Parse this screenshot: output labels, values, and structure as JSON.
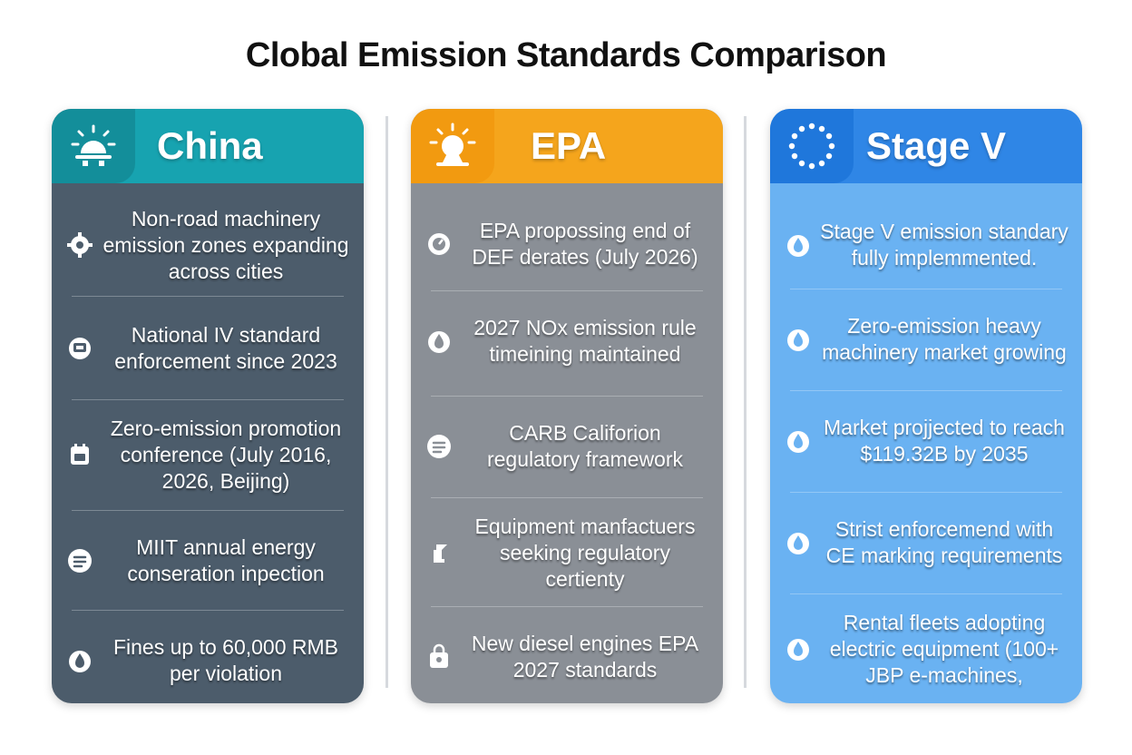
{
  "title": "Clobal Emission Standards Comparison",
  "colors": {
    "china_header": "#17a3b0",
    "china_body": "#4c5c6b",
    "epa_header": "#f5a51c",
    "epa_body": "#8a8f96",
    "stage_header": "#2f86e6",
    "stage_body": "#6ab2f2"
  },
  "columns": [
    {
      "name": "China",
      "header_icon": "sunrise-icon",
      "items": [
        {
          "icon": "cog-icon",
          "text": "Non-road machinery emission zones expanding across cities"
        },
        {
          "icon": "badge-icon",
          "text": "National IV standard enforcement since 2023"
        },
        {
          "icon": "calendar-icon",
          "text": "Zero-emission promotion conference (July 2016, 2026, Beijing)"
        },
        {
          "icon": "document-icon",
          "text": "MIIT annual energy conseration inpection"
        },
        {
          "icon": "drop-icon",
          "text": "Fines up to 60,000 RMB per violation"
        }
      ]
    },
    {
      "name": "EPA",
      "header_icon": "sun-icon",
      "items": [
        {
          "icon": "gauge-icon",
          "text": "EPA propossing end of DEF derates (July 2026)"
        },
        {
          "icon": "drop-icon",
          "text": "2027 NOx emission rule timeining maintained"
        },
        {
          "icon": "document-icon",
          "text": "CARB Califorion regulatory framework"
        },
        {
          "icon": "clipboard-icon",
          "text": "Equipment manfactuers seeking regulatory certienty"
        },
        {
          "icon": "bag-icon",
          "text": "New diesel engines EPA 2027 standards"
        }
      ]
    },
    {
      "name": "Stage V",
      "header_icon": "eu-stars-icon",
      "items": [
        {
          "icon": "drop-icon",
          "text": "Stage V emission standary fully implemmented."
        },
        {
          "icon": "drop-icon",
          "text": "Zero-emission heavy machinery market growing"
        },
        {
          "icon": "drop-icon",
          "text": "Market projjected to reach $119.32B by 2035"
        },
        {
          "icon": "drop-icon",
          "text": "Strist enforcemend with CE marking requirements"
        },
        {
          "icon": "drop-icon",
          "text": "Rental fleets adopting electric equipment (100+ JBP e-machines,"
        }
      ]
    }
  ]
}
